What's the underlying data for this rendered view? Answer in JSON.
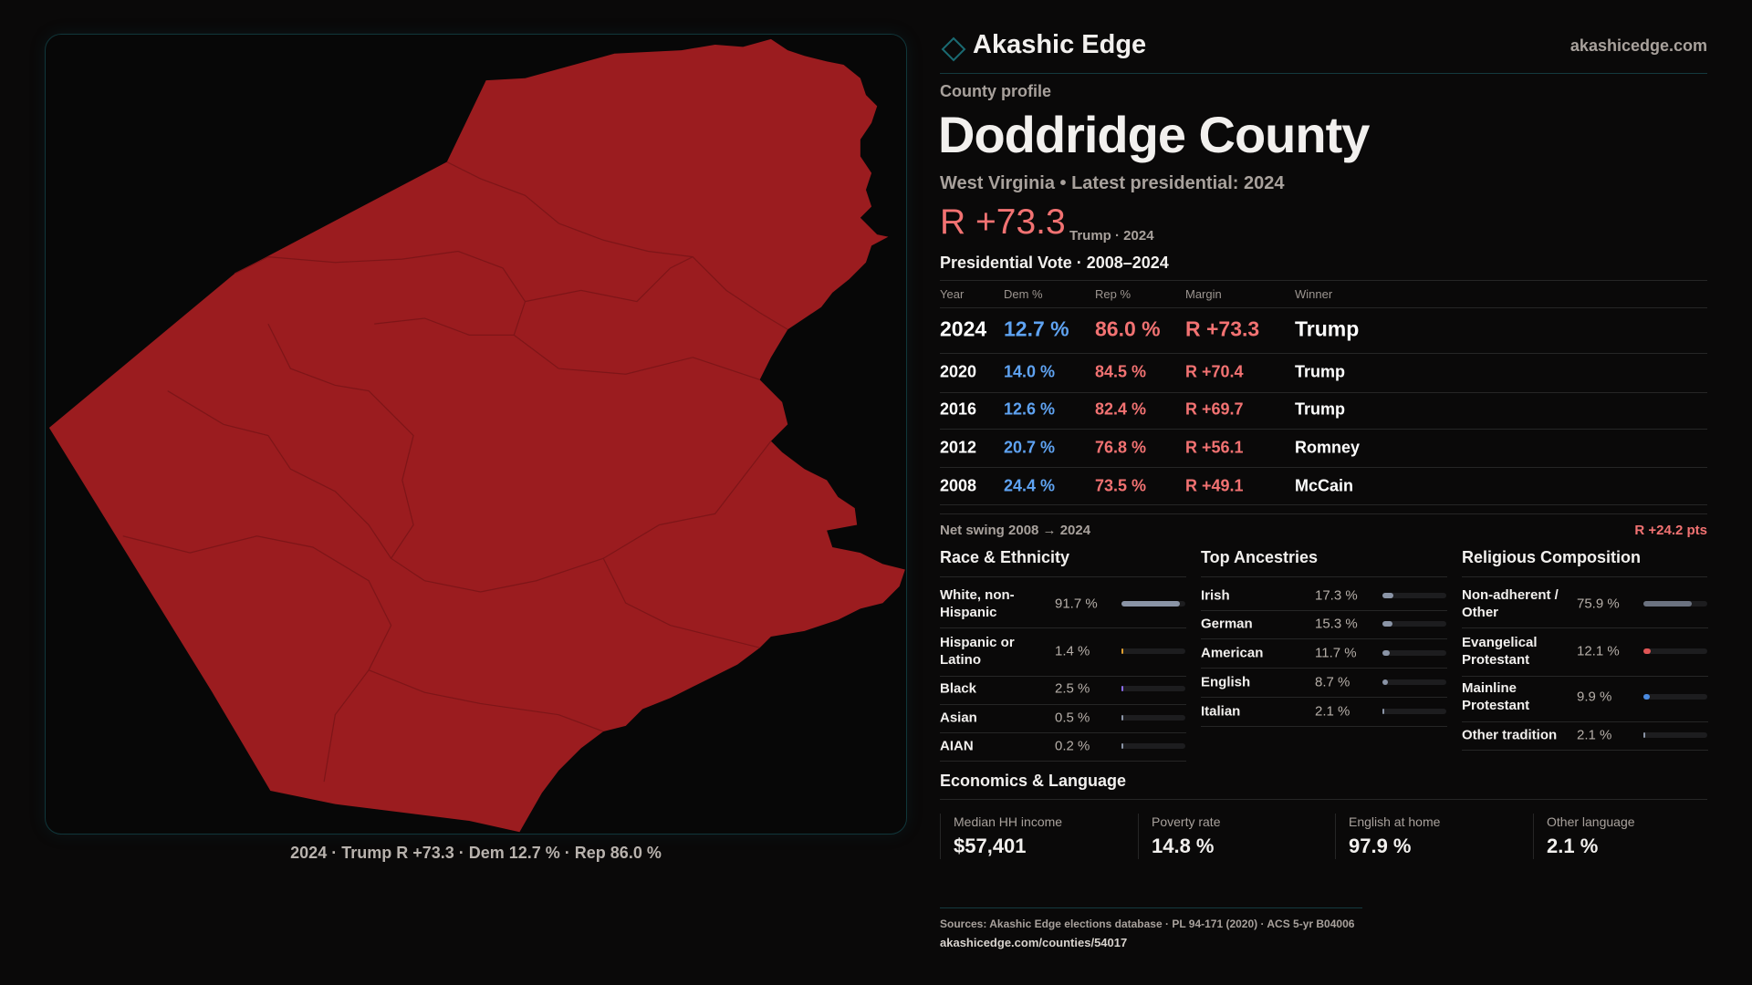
{
  "brand": {
    "name": "Akashic Edge",
    "site": "akashicedge.com"
  },
  "map": {
    "fill_color": "#9b1c1f",
    "caption": "2024 · Trump R +73.3 · Dem 12.7 % · Rep 86.0 %"
  },
  "profile": {
    "eyebrow": "County profile",
    "title": "Doddridge County",
    "subtitle": "West Virginia • Latest presidential: 2024",
    "margin": "R +73.3",
    "margin_note": "Trump · 2024"
  },
  "votes": {
    "heading": "Presidential Vote · 2008–2024",
    "columns": [
      "Year",
      "Dem %",
      "Rep %",
      "Margin",
      "Winner"
    ],
    "rows": [
      {
        "year": "2024",
        "dem": "12.7 %",
        "rep": "86.0 %",
        "margin": "R +73.3",
        "winner": "Trump"
      },
      {
        "year": "2020",
        "dem": "14.0 %",
        "rep": "84.5 %",
        "margin": "R +70.4",
        "winner": "Trump"
      },
      {
        "year": "2016",
        "dem": "12.6 %",
        "rep": "82.4 %",
        "margin": "R +69.7",
        "winner": "Trump"
      },
      {
        "year": "2012",
        "dem": "20.7 %",
        "rep": "76.8 %",
        "margin": "R +56.1",
        "winner": "Romney"
      },
      {
        "year": "2008",
        "dem": "24.4 %",
        "rep": "73.5 %",
        "margin": "R +49.1",
        "winner": "McCain"
      }
    ],
    "swing_label": "Net swing 2008 → 2024",
    "swing_value": "R +24.2 pts"
  },
  "race": {
    "heading": "Race & Ethnicity",
    "items": [
      {
        "label": "White, non-Hispanic",
        "value": "91.7 %",
        "pct": 91.7,
        "color": "#8a94a6"
      },
      {
        "label": "Hispanic or Latino",
        "value": "1.4 %",
        "pct": 1.4,
        "color": "#e0a030"
      },
      {
        "label": "Black",
        "value": "2.5 %",
        "pct": 2.5,
        "color": "#8b6cf0"
      },
      {
        "label": "Asian",
        "value": "0.5 %",
        "pct": 0.5,
        "color": "#8a94a6"
      },
      {
        "label": "AIAN",
        "value": "0.2 %",
        "pct": 0.2,
        "color": "#8a94a6"
      }
    ]
  },
  "ancestry": {
    "heading": "Top Ancestries",
    "items": [
      {
        "label": "Irish",
        "value": "17.3 %",
        "pct": 17.3,
        "color": "#8a94a6"
      },
      {
        "label": "German",
        "value": "15.3 %",
        "pct": 15.3,
        "color": "#8a94a6"
      },
      {
        "label": "American",
        "value": "11.7 %",
        "pct": 11.7,
        "color": "#8a94a6"
      },
      {
        "label": "English",
        "value": "8.7 %",
        "pct": 8.7,
        "color": "#8a94a6"
      },
      {
        "label": "Italian",
        "value": "2.1 %",
        "pct": 2.1,
        "color": "#8a94a6"
      }
    ]
  },
  "religion": {
    "heading": "Religious Composition",
    "items": [
      {
        "label": "Non-adherent / Other",
        "value": "75.9 %",
        "pct": 75.9,
        "color": "#6b7280"
      },
      {
        "label": "Evangelical Protestant",
        "value": "12.1 %",
        "pct": 12.1,
        "color": "#e05555"
      },
      {
        "label": "Mainline Protestant",
        "value": "9.9 %",
        "pct": 9.9,
        "color": "#4a8ae0"
      },
      {
        "label": "Other tradition",
        "value": "2.1 %",
        "pct": 2.1,
        "color": "#8a94a6"
      }
    ]
  },
  "economics": {
    "heading": "Economics & Language",
    "stats": [
      {
        "label": "Median HH income",
        "value": "$57,401"
      },
      {
        "label": "Poverty rate",
        "value": "14.8 %"
      },
      {
        "label": "English at home",
        "value": "97.9 %"
      },
      {
        "label": "Other language",
        "value": "2.1 %"
      }
    ]
  },
  "footer": {
    "sources": "Sources: Akashic Edge elections database · PL 94-171 (2020) · ACS 5-yr B04006",
    "url": "akashicedge.com/counties/54017"
  }
}
